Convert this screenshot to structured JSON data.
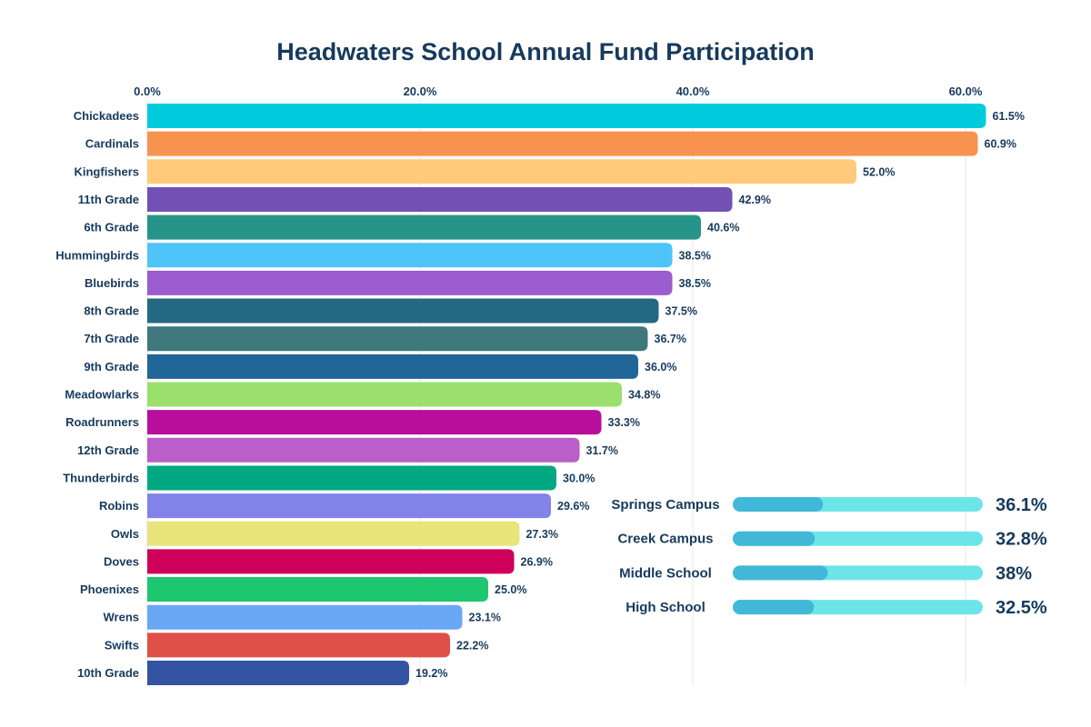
{
  "chart_data": {
    "type": "bar",
    "orientation": "horizontal",
    "title": "Headwaters School Annual Fund Participation",
    "xlabel": "",
    "ylabel": "",
    "xlim": [
      0,
      61.5
    ],
    "x_ticks": [
      "0.0%",
      "20.0%",
      "40.0%",
      "60.0%"
    ],
    "x_tick_values": [
      0,
      20,
      40,
      60
    ],
    "grid": true,
    "categories": [
      "Chickadees",
      "Cardinals",
      "Kingfishers",
      "11th Grade",
      "6th Grade",
      "Hummingbirds",
      "Bluebirds",
      "8th Grade",
      "7th Grade",
      "9th Grade",
      "Meadowlarks",
      "Roadrunners",
      "12th Grade",
      "Thunderbirds",
      "Robins",
      "Owls",
      "Doves",
      "Phoenixes",
      "Wrens",
      "Swifts",
      "10th Grade"
    ],
    "values": [
      61.5,
      60.9,
      52.0,
      42.9,
      40.6,
      38.5,
      38.5,
      37.5,
      36.7,
      36.0,
      34.8,
      33.3,
      31.7,
      30.0,
      29.6,
      27.3,
      26.9,
      25.0,
      23.1,
      22.2,
      19.2
    ],
    "value_labels": [
      "61.5%",
      "60.9%",
      "52.0%",
      "42.9%",
      "40.6%",
      "38.5%",
      "38.5%",
      "37.5%",
      "36.7%",
      "36.0%",
      "34.8%",
      "33.3%",
      "31.7%",
      "30.0%",
      "29.6%",
      "27.3%",
      "26.9%",
      "25.0%",
      "23.1%",
      "22.2%",
      "19.2%"
    ],
    "colors": [
      "#00cbdc",
      "#f8924f",
      "#ffcb7b",
      "#7351b4",
      "#279489",
      "#4ec4f8",
      "#9b5ccf",
      "#236981",
      "#3e787c",
      "#206697",
      "#9be06d",
      "#b90e9b",
      "#bb5ec9",
      "#00a982",
      "#8282e8",
      "#e8e57b",
      "#cf0059",
      "#1ec66f",
      "#6aa8f6",
      "#df5048",
      "#3454a3"
    ]
  },
  "campus_summary": {
    "items": [
      {
        "label": "Springs Campus",
        "value": 36.1,
        "value_label": "36.1%"
      },
      {
        "label": "Creek Campus",
        "value": 32.8,
        "value_label": "32.8%"
      },
      {
        "label": "Middle School",
        "value": 38,
        "value_label": "38%"
      },
      {
        "label": "High School",
        "value": 32.5,
        "value_label": "32.5%"
      }
    ],
    "track_color": "#6de5e8",
    "fill_color": "#41b8d8"
  }
}
